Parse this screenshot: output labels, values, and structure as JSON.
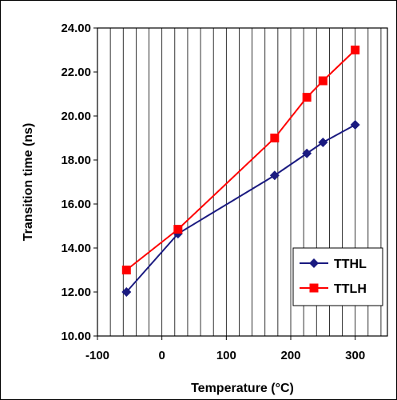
{
  "chart_data": {
    "type": "line",
    "xlabel": "Temperature (°C)",
    "ylabel": "Transition time (ns)",
    "xlim": [
      -100,
      350
    ],
    "ylim": [
      10,
      24
    ],
    "xticks": [
      "-100",
      "0",
      "100",
      "200",
      "300"
    ],
    "yticks": [
      "10.00",
      "12.00",
      "14.00",
      "16.00",
      "18.00",
      "20.00",
      "22.00",
      "24.00"
    ],
    "grid": "vertical",
    "legend_position": "right-bottom",
    "series": [
      {
        "name": "TTHL",
        "color": "#1a1a80",
        "marker": "diamond",
        "x": [
          -55,
          25,
          175,
          225,
          250,
          300
        ],
        "y": [
          12.0,
          14.65,
          17.3,
          18.3,
          18.8,
          19.6
        ]
      },
      {
        "name": "TTLH",
        "color": "#ff0000",
        "marker": "square",
        "x": [
          -55,
          25,
          175,
          225,
          250,
          300
        ],
        "y": [
          13.0,
          14.85,
          19.0,
          20.85,
          21.6,
          23.0
        ]
      }
    ]
  }
}
